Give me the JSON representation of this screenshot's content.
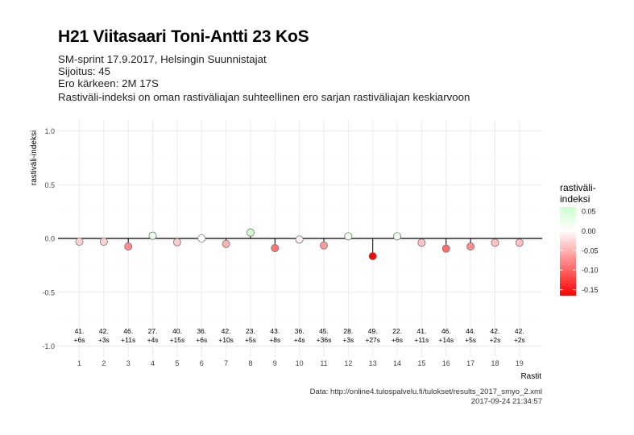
{
  "header": {
    "title": "H21 Viitasaari Toni-Antti 23 KoS",
    "subtitle_lines": [
      "SM-sprint 17.9.2017, Helsingin Suunnistajat",
      "Sijoitus: 45",
      "Ero kärkeen: 2M 17S",
      "Rastiväli-indeksi on oman rastiväliajan suhteellinen ero sarjan rastiväliajan keskiarvoon"
    ]
  },
  "caption": {
    "source": "Data: http://online4.tulospalvelu.fi/tulokset/results_2017_smyo_2.xml",
    "timestamp": "2017-09-24 21:34:57"
  },
  "colors": {
    "positive": "#ccffcc",
    "zero": "#ffffff",
    "negative": "#ff0000",
    "grid": "#ebebeb",
    "baseline": "#000000"
  },
  "chart_data": {
    "type": "scatter",
    "xlabel": "Rastit",
    "ylabel": "rastiväli-indeksi",
    "ylim": [
      -1.0,
      1.0
    ],
    "y_ticks": [
      "1.0",
      "0.5",
      "0.0",
      "-0.5",
      "-1.0"
    ],
    "y_tick_values": [
      1.0,
      0.5,
      0.0,
      -0.5,
      -1.0
    ],
    "grid": true,
    "legend": {
      "title_lines": [
        "rastiväli-",
        "indeksi"
      ],
      "placement": "right",
      "tick_labels": [
        "0.05",
        "0.00",
        "-0.05",
        "-0.10",
        "-0.15"
      ],
      "tick_values": [
        0.05,
        0.0,
        -0.05,
        -0.1,
        -0.15
      ],
      "range": [
        -0.165,
        0.06
      ]
    },
    "x": [
      1,
      2,
      3,
      4,
      5,
      6,
      7,
      8,
      9,
      10,
      11,
      12,
      13,
      14,
      15,
      16,
      17,
      18,
      19
    ],
    "values": [
      -0.03,
      -0.03,
      -0.075,
      0.025,
      -0.035,
      0.0,
      -0.05,
      0.055,
      -0.09,
      -0.01,
      -0.065,
      0.02,
      -0.165,
      0.02,
      -0.04,
      -0.095,
      -0.075,
      -0.04,
      -0.04
    ],
    "rank_labels": [
      "41.",
      "42.",
      "46.",
      "27.",
      "40.",
      "36.",
      "42.",
      "23.",
      "43.",
      "36.",
      "45.",
      "28.",
      "49.",
      "22.",
      "41.",
      "46.",
      "44.",
      "42.",
      "42."
    ],
    "diff_labels": [
      "+6s",
      "+3s",
      "+11s",
      "+4s",
      "+15s",
      "+6s",
      "+10s",
      "+5s",
      "+8s",
      "+4s",
      "+36s",
      "+3s",
      "+27s",
      "+6s",
      "+11s",
      "+14s",
      "+5s",
      "+2s",
      "+2s"
    ]
  }
}
